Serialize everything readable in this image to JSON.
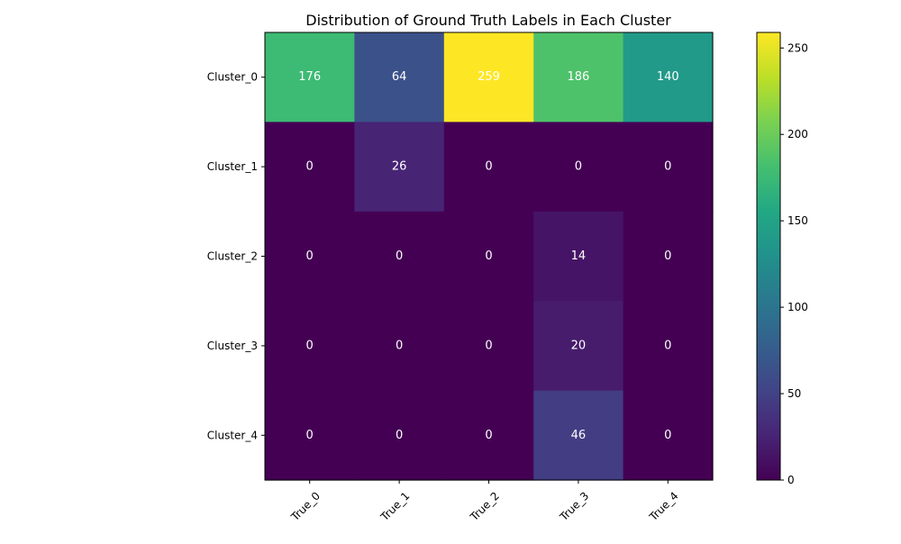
{
  "chart_data": {
    "type": "heatmap",
    "title": "Distribution of Ground Truth Labels in Each Cluster",
    "xlabel": "",
    "ylabel": "",
    "x_categories": [
      "True_0",
      "True_1",
      "True_2",
      "True_3",
      "True_4"
    ],
    "y_categories": [
      "Cluster_0",
      "Cluster_1",
      "Cluster_2",
      "Cluster_3",
      "Cluster_4"
    ],
    "values": [
      [
        176,
        64,
        259,
        186,
        140
      ],
      [
        0,
        26,
        0,
        0,
        0
      ],
      [
        0,
        0,
        0,
        14,
        0
      ],
      [
        0,
        0,
        0,
        20,
        0
      ],
      [
        0,
        0,
        0,
        46,
        0
      ]
    ],
    "colormap": "viridis",
    "vmin": 0,
    "vmax": 259,
    "colorbar_ticks": [
      0,
      50,
      100,
      150,
      200,
      250
    ],
    "x_tick_rotation_deg": 45,
    "annotation_color": "#ffffff",
    "grid": false,
    "legend": "colorbar-right"
  }
}
